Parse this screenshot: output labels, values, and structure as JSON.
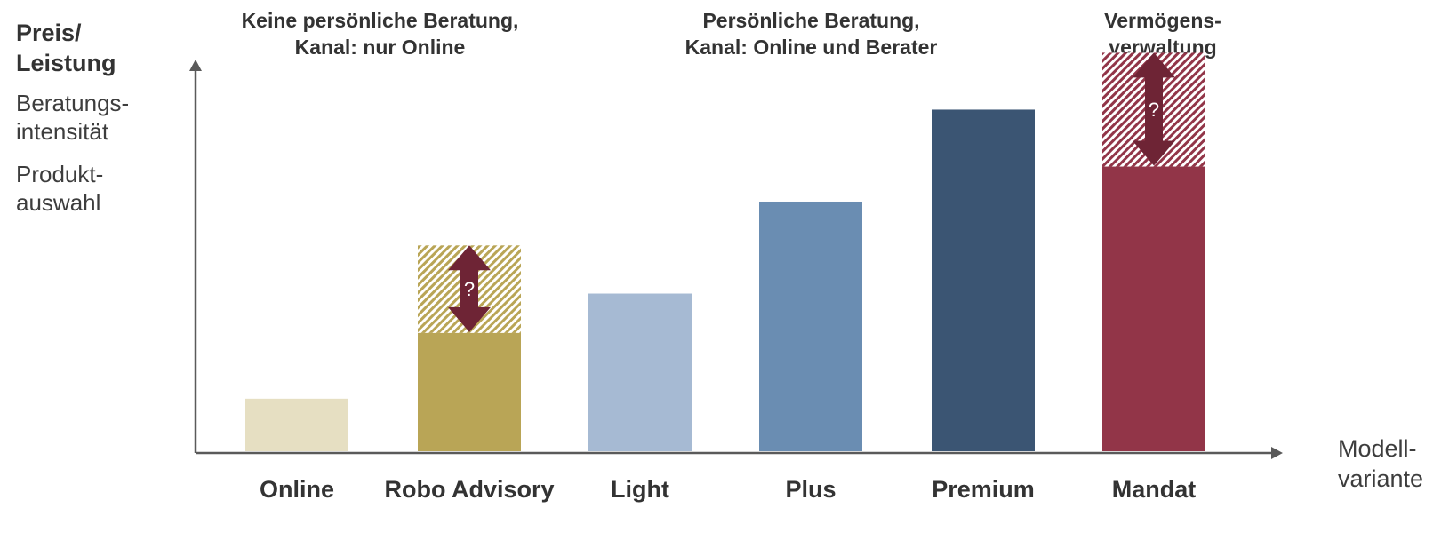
{
  "y_axis": {
    "title_line1": "Preis/",
    "title_line2": "Leistung",
    "sub1_line1": "Beratungs-",
    "sub1_line2": "intensität",
    "sub2_line1": "Produkt-",
    "sub2_line2": "auswahl"
  },
  "x_axis": {
    "title_line1": "Modell-",
    "title_line2": "variante"
  },
  "groups": [
    {
      "line1": "Keine persönliche Beratung,",
      "line2": "Kanal: nur Online"
    },
    {
      "line1": "Persönliche Beratung,",
      "line2": "Kanal: Online und Berater"
    },
    {
      "line1": "Vermögens-",
      "line2": "verwaltung"
    }
  ],
  "colors": {
    "axis": "#5a5a5a",
    "online": "#e6dfc2",
    "robo": "#b9a556",
    "light": "#a6bad3",
    "plus": "#6a8db2",
    "premium": "#3b5573",
    "mandat": "#923548",
    "arrow": "#6e2435"
  },
  "chart_data": {
    "type": "bar",
    "categories": [
      "Online",
      "Robo Advisory",
      "Light",
      "Plus",
      "Premium",
      "Mandat"
    ],
    "values": [
      12,
      27,
      36,
      57,
      78,
      65
    ],
    "hatched_extension": [
      null,
      47,
      null,
      null,
      null,
      91
    ],
    "annotation": "?",
    "ylim": [
      0,
      100
    ],
    "grid": false
  }
}
